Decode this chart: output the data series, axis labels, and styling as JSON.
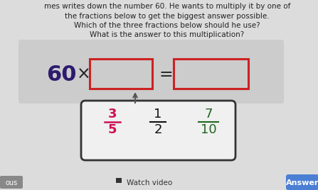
{
  "bg_color": "#dcdcdc",
  "text_color": "#222222",
  "title_lines": [
    "mes writes down the number 60. He wants to multiply it by one of",
    "the fractions below to get the biggest answer possible.",
    "Which of the three fractions below should he use?",
    "What is the answer to this multiplication?"
  ],
  "sixty_color": "#2d1b6e",
  "box1_edge_color": "#cc2222",
  "box2_edge_color": "#cc2222",
  "eq_panel_color": "#cccccc",
  "fractions_panel_color": "#f0f0f0",
  "fractions_box_edge": "#333333",
  "frac1_num": "3",
  "frac1_den": "5",
  "frac1_color": "#cc1155",
  "frac2_num": "1",
  "frac2_den": "2",
  "frac2_color": "#111111",
  "frac3_num": "7",
  "frac3_den": "10",
  "frac3_color": "#226622",
  "watch_video_text": "Watch video",
  "answer_text": "Answer",
  "answer_btn_color": "#4a7fd4",
  "previous_text": "ous",
  "prev_btn_color": "#888888"
}
